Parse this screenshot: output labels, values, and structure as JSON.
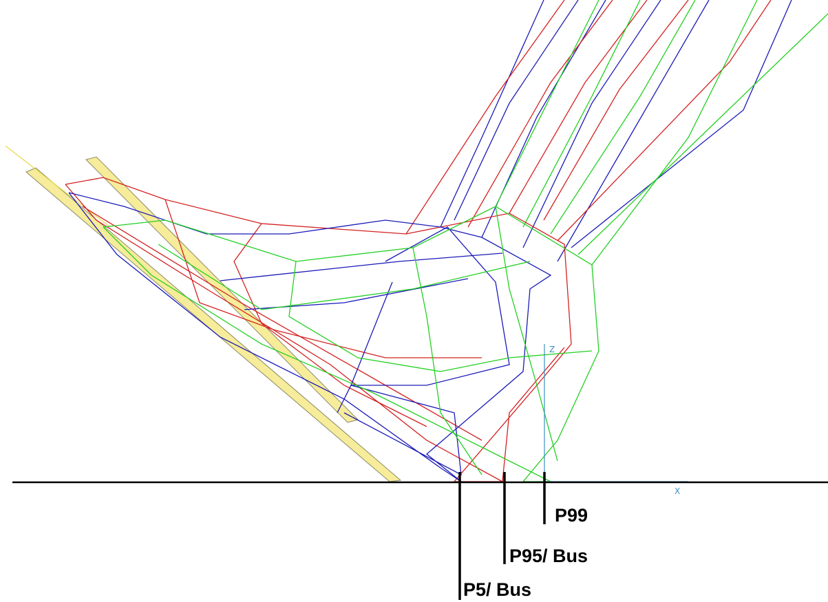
{
  "labels": {
    "p99": "P99",
    "p95": "P95/ Bus",
    "p5": "P5/ Bus"
  },
  "axes": {
    "x": "X",
    "z": "Z"
  }
}
